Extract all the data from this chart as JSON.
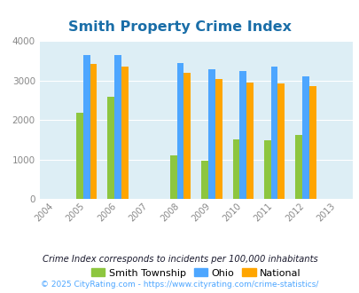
{
  "title": "Smith Property Crime Index",
  "years": [
    2004,
    2005,
    2006,
    2007,
    2008,
    2009,
    2010,
    2011,
    2012,
    2013
  ],
  "data_years": [
    2005,
    2006,
    2008,
    2009,
    2010,
    2011,
    2012
  ],
  "smith": [
    2180,
    2580,
    1120,
    970,
    1510,
    1480,
    1630
  ],
  "ohio": [
    3650,
    3650,
    3440,
    3280,
    3250,
    3350,
    3100
  ],
  "national": [
    3420,
    3360,
    3200,
    3030,
    2940,
    2920,
    2850
  ],
  "smith_color": "#8dc63f",
  "ohio_color": "#4da6ff",
  "national_color": "#ffa500",
  "bg_color": "#ddeef5",
  "ylim": [
    0,
    4000
  ],
  "yticks": [
    0,
    1000,
    2000,
    3000,
    4000
  ],
  "bar_width": 0.22,
  "legend_labels": [
    "Smith Township",
    "Ohio",
    "National"
  ],
  "footnote1": "Crime Index corresponds to incidents per 100,000 inhabitants",
  "footnote2": "© 2025 CityRating.com - https://www.cityrating.com/crime-statistics/",
  "title_color": "#1a6ea8",
  "footnote1_color": "#1a1a2e",
  "footnote2_color": "#4da6ff"
}
